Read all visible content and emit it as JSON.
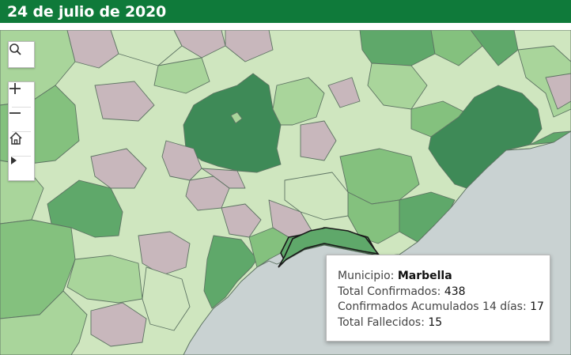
{
  "header": {
    "title": "24 de julio de 2020",
    "background": "#0f7a3a"
  },
  "map": {
    "sea_color": "#c9d2d2",
    "legend_colors": [
      "#c8b7bc",
      "#cfe6bf",
      "#a9d59b",
      "#84c17e",
      "#5fa86a",
      "#3e8a57"
    ],
    "selected_municipality": "Marbella"
  },
  "controls": {
    "search": "search-icon",
    "zoom_in": "plus-icon",
    "zoom_out": "minus-icon",
    "home": "home-icon",
    "expand": "play-icon"
  },
  "tooltip": {
    "municipio_label": "Municipio:",
    "municipio_value": "Marbella",
    "confirmados_label": "Total Confirmados:",
    "confirmados_value": "438",
    "acumulados_label": "Confirmados Acumulados 14 días:",
    "acumulados_value": "17",
    "fallecidos_label": "Total Fallecidos:",
    "fallecidos_value": "15"
  }
}
